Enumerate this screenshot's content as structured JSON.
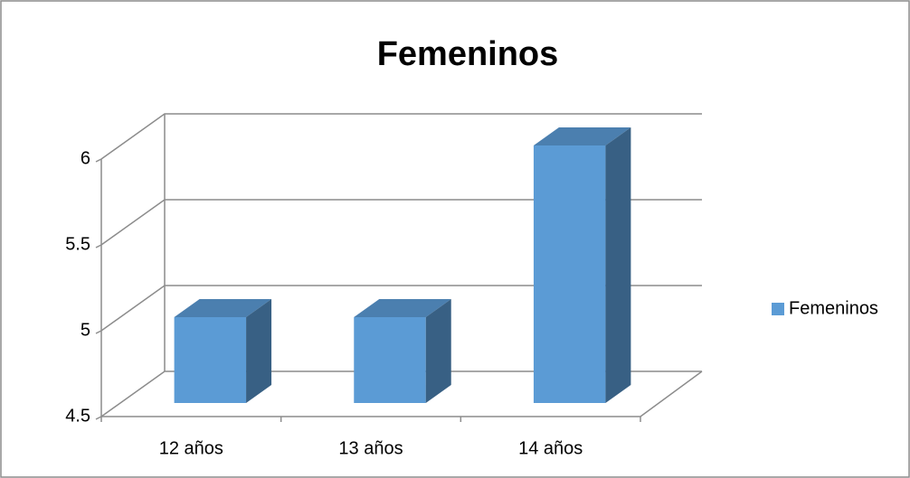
{
  "chart_data": {
    "type": "bar",
    "title": "Femeninos",
    "categories": [
      "12 años",
      "13 años",
      "14 años"
    ],
    "series": [
      {
        "name": "Femeninos",
        "color": "#5b9bd5",
        "values": [
          5,
          5,
          6
        ]
      }
    ],
    "ylim": [
      4.5,
      6
    ],
    "yticks": [
      4.5,
      5,
      5.5,
      6
    ],
    "grid": true,
    "legend": "right"
  }
}
